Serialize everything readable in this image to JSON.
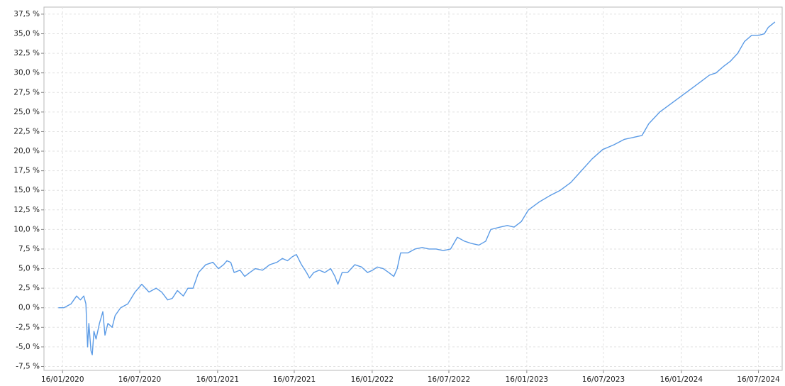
{
  "chart_data": {
    "type": "line",
    "color": "#5b9be6",
    "grid": true,
    "xlim": [
      "2019-12-03",
      "2024-09-10"
    ],
    "ylim": [
      -8.0,
      38.4
    ],
    "xticks": [
      {
        "value": "2020-01-16",
        "label": "16/01/2020"
      },
      {
        "value": "2020-07-16",
        "label": "16/07/2020"
      },
      {
        "value": "2021-01-16",
        "label": "16/01/2021"
      },
      {
        "value": "2021-07-16",
        "label": "16/07/2021"
      },
      {
        "value": "2022-01-16",
        "label": "16/01/2022"
      },
      {
        "value": "2022-07-16",
        "label": "16/07/2022"
      },
      {
        "value": "2023-01-16",
        "label": "16/01/2023"
      },
      {
        "value": "2023-07-16",
        "label": "16/07/2023"
      },
      {
        "value": "2024-01-16",
        "label": "16/01/2024"
      },
      {
        "value": "2024-07-16",
        "label": "16/07/2024"
      }
    ],
    "yticks": [
      {
        "value": -7.5,
        "label": "-7,5 %"
      },
      {
        "value": -5.0,
        "label": "-5,0 %"
      },
      {
        "value": -2.5,
        "label": "-2,5 %"
      },
      {
        "value": 0.0,
        "label": "0,0 %"
      },
      {
        "value": 2.5,
        "label": "2,5 %"
      },
      {
        "value": 5.0,
        "label": "5,0 %"
      },
      {
        "value": 7.5,
        "label": "7,5 %"
      },
      {
        "value": 10.0,
        "label": "10,0 %"
      },
      {
        "value": 12.5,
        "label": "12,5 %"
      },
      {
        "value": 15.0,
        "label": "15,0 %"
      },
      {
        "value": 17.5,
        "label": "17,5 %"
      },
      {
        "value": 20.0,
        "label": "20,0 %"
      },
      {
        "value": 22.5,
        "label": "22,5 %"
      },
      {
        "value": 25.0,
        "label": "25,0 %"
      },
      {
        "value": 27.5,
        "label": "27,5 %"
      },
      {
        "value": 30.0,
        "label": "30,0 %"
      },
      {
        "value": 32.5,
        "label": "32,5 %"
      },
      {
        "value": 35.0,
        "label": "35,0 %"
      },
      {
        "value": 37.5,
        "label": "37,5 %"
      }
    ],
    "x": [
      "2020-01-06",
      "2020-01-19",
      "2020-02-05",
      "2020-02-18",
      "2020-02-27",
      "2020-03-06",
      "2020-03-11",
      "2020-03-15",
      "2020-03-18",
      "2020-03-23",
      "2020-03-26",
      "2020-03-30",
      "2020-04-04",
      "2020-04-12",
      "2020-04-20",
      "2020-04-25",
      "2020-05-02",
      "2020-05-12",
      "2020-05-19",
      "2020-06-01",
      "2020-06-18",
      "2020-07-05",
      "2020-07-21",
      "2020-08-07",
      "2020-08-24",
      "2020-09-06",
      "2020-09-20",
      "2020-10-01",
      "2020-10-13",
      "2020-10-27",
      "2020-11-07",
      "2020-11-19",
      "2020-12-02",
      "2020-12-19",
      "2021-01-05",
      "2021-01-18",
      "2021-01-30",
      "2021-02-07",
      "2021-02-16",
      "2021-02-24",
      "2021-03-10",
      "2021-03-21",
      "2021-04-02",
      "2021-04-15",
      "2021-05-02",
      "2021-05-19",
      "2021-06-05",
      "2021-06-18",
      "2021-06-30",
      "2021-07-11",
      "2021-07-21",
      "2021-08-02",
      "2021-08-14",
      "2021-08-21",
      "2021-08-31",
      "2021-09-13",
      "2021-09-26",
      "2021-10-10",
      "2021-10-20",
      "2021-10-27",
      "2021-11-06",
      "2021-11-19",
      "2021-12-06",
      "2021-12-22",
      "2022-01-05",
      "2022-01-17",
      "2022-01-28",
      "2022-02-11",
      "2022-02-24",
      "2022-03-08",
      "2022-03-16",
      "2022-03-24",
      "2022-04-10",
      "2022-04-27",
      "2022-05-14",
      "2022-05-30",
      "2022-06-16",
      "2022-07-03",
      "2022-07-20",
      "2022-08-05",
      "2022-08-22",
      "2022-09-08",
      "2022-09-25",
      "2022-10-11",
      "2022-10-23",
      "2022-11-14",
      "2022-12-01",
      "2022-12-17",
      "2023-01-03",
      "2023-01-20",
      "2023-02-14",
      "2023-03-11",
      "2023-04-05",
      "2023-04-30",
      "2023-05-25",
      "2023-06-19",
      "2023-07-14",
      "2023-08-09",
      "2023-09-03",
      "2023-09-28",
      "2023-10-15",
      "2023-10-31",
      "2023-11-26",
      "2023-12-21",
      "2024-01-15",
      "2024-02-09",
      "2024-03-05",
      "2024-03-22",
      "2024-04-07",
      "2024-04-24",
      "2024-05-11",
      "2024-05-28",
      "2024-06-13",
      "2024-06-30",
      "2024-07-17",
      "2024-07-30",
      "2024-08-08",
      "2024-08-24"
    ],
    "values": [
      0.0,
      0.0,
      0.5,
      1.5,
      1.0,
      1.5,
      0.5,
      -5.0,
      -2.0,
      -5.5,
      -6.0,
      -3.0,
      -4.0,
      -2.0,
      -0.5,
      -3.5,
      -2.0,
      -2.5,
      -1.0,
      0.0,
      0.5,
      2.0,
      3.0,
      2.0,
      2.5,
      2.0,
      1.0,
      1.2,
      2.2,
      1.5,
      2.5,
      2.5,
      4.5,
      5.5,
      5.8,
      5.0,
      5.5,
      6.0,
      5.8,
      4.5,
      4.8,
      4.0,
      4.5,
      5.0,
      4.8,
      5.5,
      5.8,
      6.3,
      6.0,
      6.5,
      6.8,
      5.5,
      4.5,
      3.8,
      4.5,
      4.8,
      4.5,
      5.0,
      4.0,
      3.0,
      4.5,
      4.5,
      5.5,
      5.2,
      4.5,
      4.8,
      5.2,
      5.0,
      4.5,
      4.0,
      5.0,
      7.0,
      7.0,
      7.5,
      7.7,
      7.5,
      7.5,
      7.3,
      7.5,
      9.0,
      8.5,
      8.2,
      8.0,
      8.5,
      10.0,
      10.3,
      10.5,
      10.3,
      11.0,
      12.5,
      13.5,
      14.3,
      15.0,
      16.0,
      17.5,
      19.0,
      20.2,
      20.8,
      21.5,
      21.8,
      22.0,
      23.5,
      25.0,
      26.0,
      27.0,
      28.0,
      29.0,
      29.7,
      30.0,
      30.8,
      31.5,
      32.5,
      34.0,
      34.8,
      34.8,
      35.0,
      35.8,
      36.5
    ]
  }
}
